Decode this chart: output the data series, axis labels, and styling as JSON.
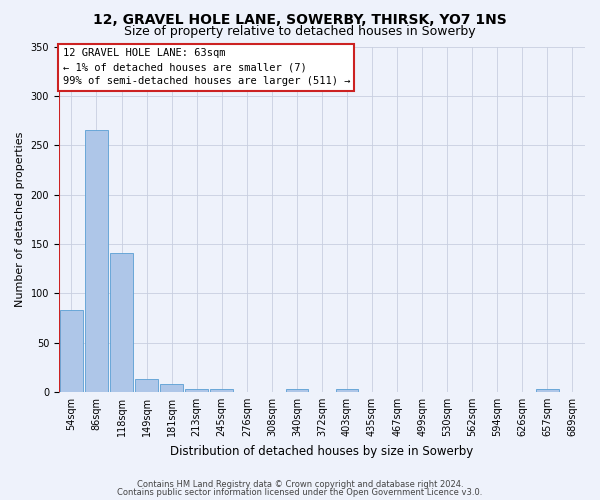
{
  "title1": "12, GRAVEL HOLE LANE, SOWERBY, THIRSK, YO7 1NS",
  "title2": "Size of property relative to detached houses in Sowerby",
  "xlabel": "Distribution of detached houses by size in Sowerby",
  "ylabel": "Number of detached properties",
  "footnote1": "Contains HM Land Registry data © Crown copyright and database right 2024.",
  "footnote2": "Contains public sector information licensed under the Open Government Licence v3.0.",
  "annotation_line1": "12 GRAVEL HOLE LANE: 63sqm",
  "annotation_line2": "← 1% of detached houses are smaller (7)",
  "annotation_line3": "99% of semi-detached houses are larger (511) →",
  "bar_labels": [
    "54sqm",
    "86sqm",
    "118sqm",
    "149sqm",
    "181sqm",
    "213sqm",
    "245sqm",
    "276sqm",
    "308sqm",
    "340sqm",
    "372sqm",
    "403sqm",
    "435sqm",
    "467sqm",
    "499sqm",
    "530sqm",
    "562sqm",
    "594sqm",
    "626sqm",
    "657sqm",
    "689sqm"
  ],
  "bar_values": [
    83,
    265,
    141,
    13,
    8,
    3,
    3,
    0,
    0,
    3,
    0,
    3,
    0,
    0,
    0,
    0,
    0,
    0,
    0,
    3,
    0
  ],
  "bar_color": "#aec6e8",
  "bar_edge_color": "#5a9fd4",
  "highlight_color": "#cc2222",
  "ylim": [
    0,
    350
  ],
  "yticks": [
    0,
    50,
    100,
    150,
    200,
    250,
    300,
    350
  ],
  "bg_color": "#eef2fb",
  "grid_color": "#c8cfe0",
  "title1_fontsize": 10,
  "title2_fontsize": 9,
  "xlabel_fontsize": 8.5,
  "ylabel_fontsize": 8,
  "tick_fontsize": 7,
  "annotation_fontsize": 7.5,
  "footnote_fontsize": 6,
  "annotation_box_color": "#ffffff",
  "annotation_box_edge": "#cc2222"
}
